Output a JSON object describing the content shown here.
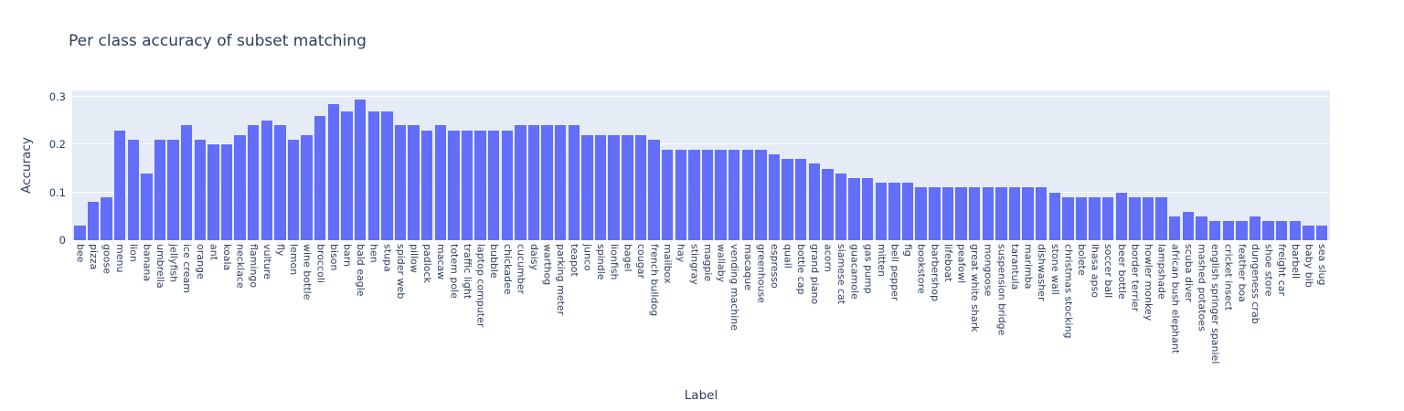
{
  "chart": {
    "colors": {
      "bar": "#636efa",
      "plot_background": "#e5ecf6",
      "gridline": "#ffffff",
      "text": "#2a3f5f",
      "page_background": "#ffffff"
    }
  },
  "chart_data": {
    "type": "bar",
    "title": "Per class accuracy of subset matching",
    "xlabel": "Label",
    "ylabel": "Accuracy",
    "ylim": [
      0,
      0.3136
    ],
    "yticks": [
      0,
      0.1,
      0.2,
      0.3
    ],
    "ytick_labels": [
      "0",
      "0.1",
      "0.2",
      "0.3"
    ],
    "grid": true,
    "legend_position": "none",
    "categories": [
      "bee",
      "pizza",
      "goose",
      "menu",
      "lion",
      "banana",
      "umbrella",
      "jellyfish",
      "ice cream",
      "orange",
      "ant",
      "koala",
      "necklace",
      "flamingo",
      "vulture",
      "fly",
      "lemon",
      "wine bottle",
      "broccoli",
      "bison",
      "barn",
      "bald eagle",
      "hen",
      "stupa",
      "spider web",
      "pillow",
      "padlock",
      "macaw",
      "totem pole",
      "traffic light",
      "laptop computer",
      "bubble",
      "chickadee",
      "cucumber",
      "daisy",
      "warthog",
      "parking meter",
      "teapot",
      "junco",
      "spindle",
      "lionfish",
      "bagel",
      "cougar",
      "french bulldog",
      "mailbox",
      "hay",
      "stingray",
      "magpie",
      "wallaby",
      "vending machine",
      "macaque",
      "greenhouse",
      "espresso",
      "quail",
      "bottle cap",
      "grand piano",
      "acorn",
      "siamese cat",
      "guacamole",
      "gas pump",
      "mitten",
      "bell pepper",
      "fig",
      "bookstore",
      "barbershop",
      "lifeboat",
      "peafowl",
      "great white shark",
      "mongoose",
      "suspension bridge",
      "tarantula",
      "marimba",
      "dishwasher",
      "stone wall",
      "christmas stocking",
      "bolete",
      "lhasa apso",
      "soccer ball",
      "beer bottle",
      "border terrier",
      "howler monkey",
      "lampshade",
      "african bush elephant",
      "scuba diver",
      "mashed potatoes",
      "english springer spaniel",
      "cricket insect",
      "feather boa",
      "dungeness crab",
      "shoe store",
      "freight car",
      "barbell",
      "baby bib",
      "sea slug"
    ],
    "values": [
      0.03,
      0.08,
      0.09,
      0.23,
      0.21,
      0.14,
      0.21,
      0.21,
      0.24,
      0.21,
      0.2,
      0.2,
      0.22,
      0.24,
      0.25,
      0.24,
      0.21,
      0.22,
      0.26,
      0.285,
      0.27,
      0.295,
      0.27,
      0.27,
      0.24,
      0.24,
      0.23,
      0.24,
      0.23,
      0.23,
      0.23,
      0.23,
      0.23,
      0.24,
      0.24,
      0.24,
      0.24,
      0.24,
      0.22,
      0.22,
      0.22,
      0.22,
      0.22,
      0.21,
      0.19,
      0.19,
      0.19,
      0.19,
      0.19,
      0.19,
      0.19,
      0.19,
      0.18,
      0.17,
      0.17,
      0.16,
      0.15,
      0.14,
      0.13,
      0.13,
      0.12,
      0.12,
      0.12,
      0.11,
      0.11,
      0.11,
      0.11,
      0.11,
      0.11,
      0.11,
      0.11,
      0.11,
      0.11,
      0.1,
      0.09,
      0.09,
      0.09,
      0.09,
      0.1,
      0.09,
      0.09,
      0.09,
      0.05,
      0.06,
      0.05,
      0.04,
      0.04,
      0.04,
      0.05,
      0.04,
      0.04,
      0.04,
      0.03,
      0.03
    ]
  }
}
